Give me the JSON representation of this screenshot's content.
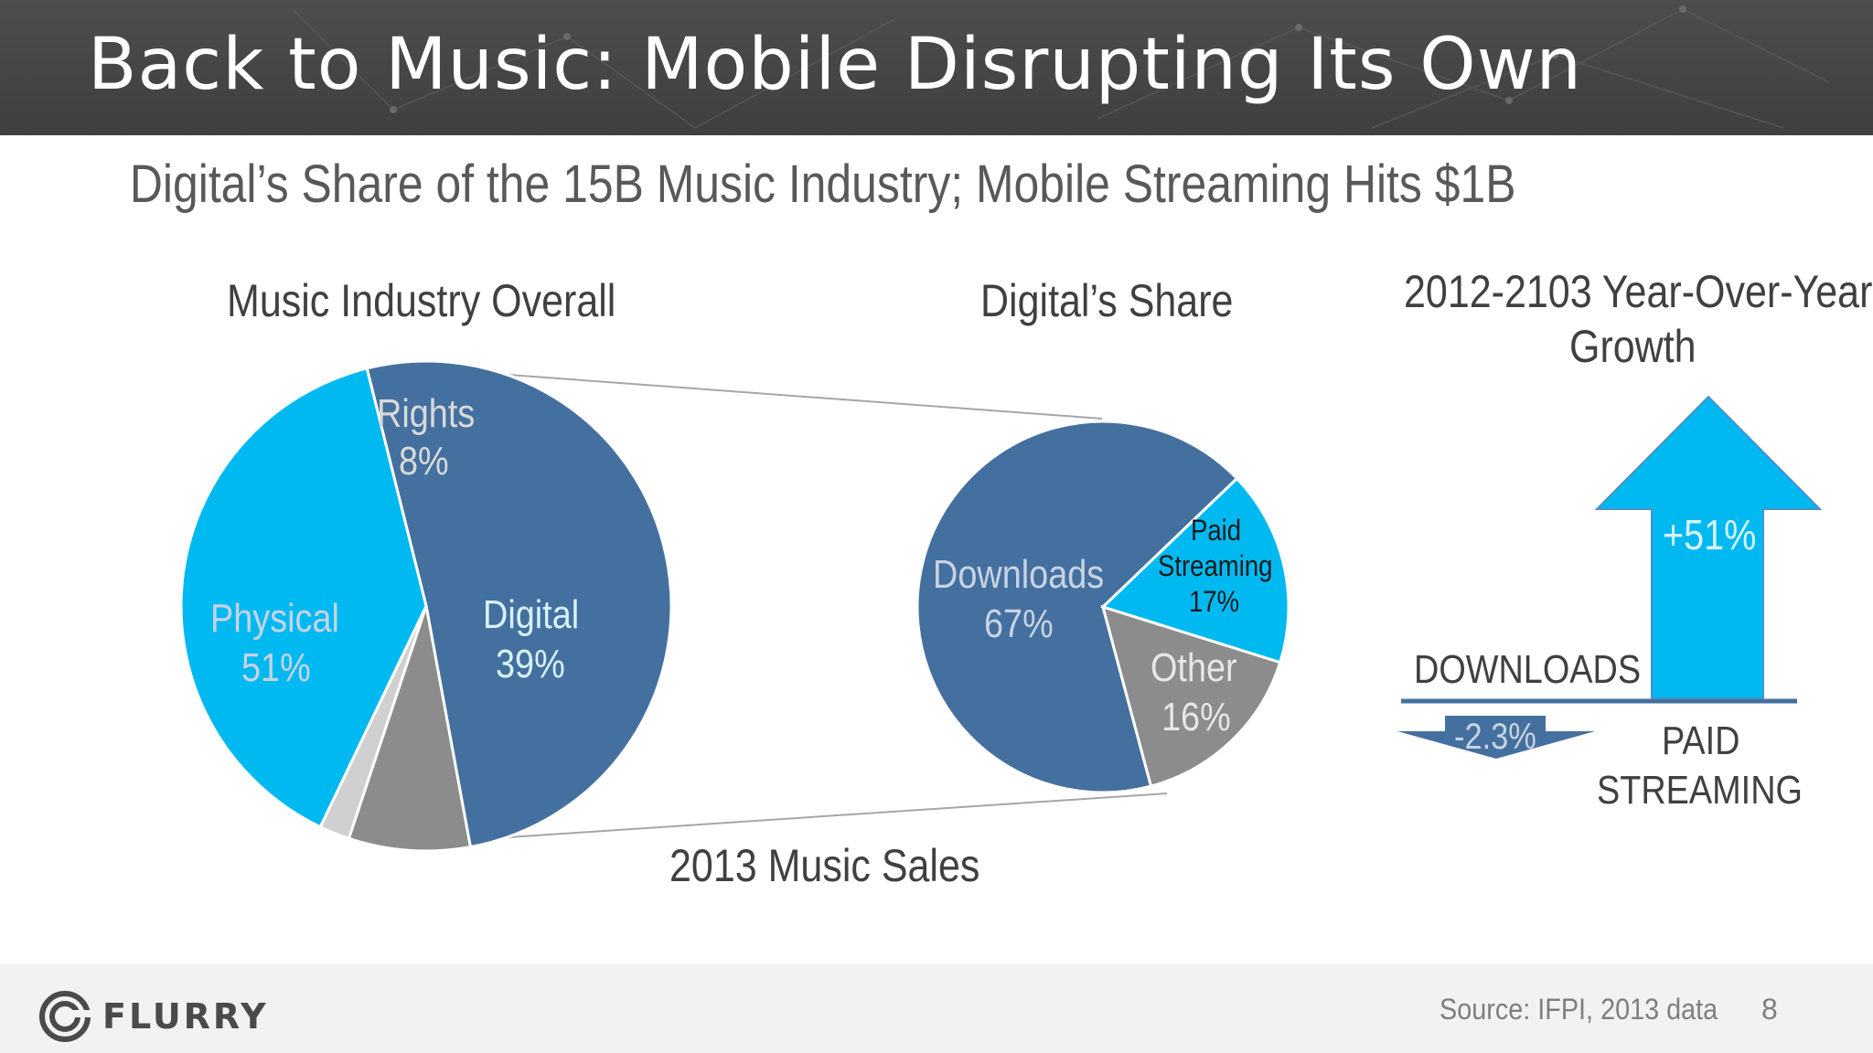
{
  "header": {
    "title": "Back to Music: Mobile Disrupting Its Own"
  },
  "subtitle": "Digital’s Share of the 15B Music Industry; Mobile Streaming Hits $1B",
  "colors": {
    "physical": "#44709f",
    "digital": "#00b9f1",
    "rights": "#8c8c8c",
    "other_sliver": "#d0d0d0",
    "downloads": "#44709f",
    "paid_streaming": "#00b9f1",
    "other": "#8c8c8c",
    "header_bg": "#444444",
    "footer_bg": "#f2f2f2"
  },
  "chart_data": [
    {
      "type": "pie",
      "title": "Music Industry Overall",
      "slices": [
        {
          "label": "Physical",
          "value_label": "51%",
          "value": 51
        },
        {
          "label": "Rights",
          "value_label": "8%",
          "value": 8
        },
        {
          "label": "",
          "value_label": "",
          "value": 2
        },
        {
          "label": "Digital",
          "value_label": "39%",
          "value": 39
        }
      ]
    },
    {
      "type": "pie",
      "title": "Digital’s Share",
      "slices": [
        {
          "label": "Downloads",
          "value_label": "67%",
          "value": 67
        },
        {
          "label": "Paid Streaming",
          "label_lines": [
            "Paid",
            "Streaming"
          ],
          "value_label": "17%",
          "value": 17
        },
        {
          "label": "Other",
          "value_label": "16%",
          "value": 16
        }
      ]
    },
    {
      "type": "bar",
      "title": "2012-2103 Year-Over-Year Growth",
      "categories": [
        "DOWNLOADS",
        "PAID STREAMING"
      ],
      "values": [
        -2.3,
        51
      ],
      "value_labels": [
        "-2.3%",
        "+51%"
      ]
    }
  ],
  "caption": "2013 Music Sales",
  "growth": {
    "title_line1": "2012-2103 Year-Over-Year",
    "title_line2": "Growth",
    "downloads_label": "DOWNLOADS",
    "paid_label_line1": "PAID",
    "paid_label_line2": "STREAMING"
  },
  "footer": {
    "logo_text": "FLURRY",
    "source": "Source: IFPI, 2013 data",
    "page_number": "8"
  }
}
